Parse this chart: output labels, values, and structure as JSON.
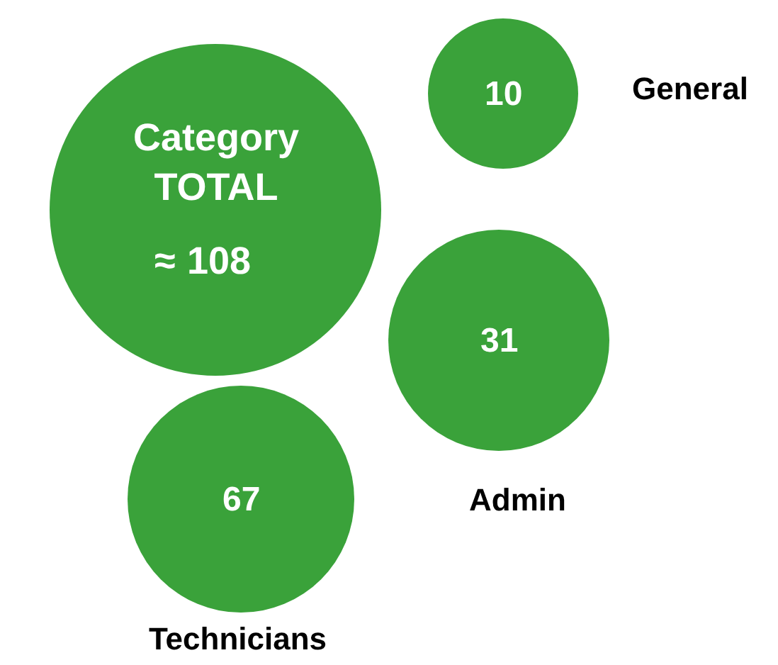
{
  "chart_data": {
    "type": "other",
    "categories": [
      "Category TOTAL ≈",
      "General",
      "Admin",
      "Technicians"
    ],
    "values": [
      108,
      10,
      31,
      67
    ],
    "data_labels": true,
    "color": "#3aa23a"
  }
}
